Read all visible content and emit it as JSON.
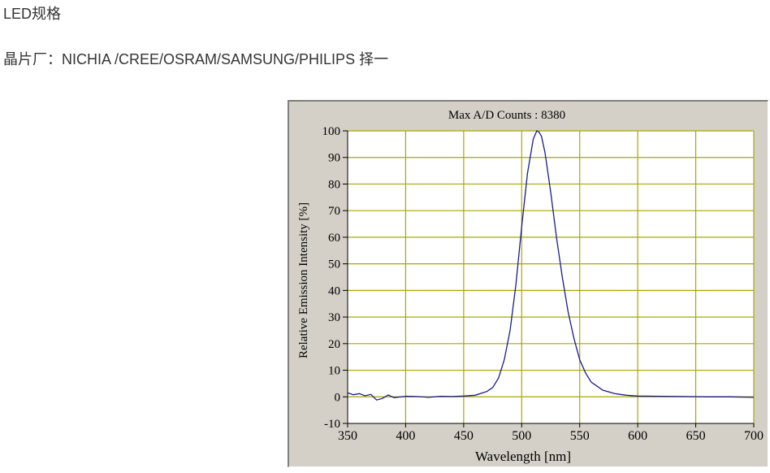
{
  "heading": "LED规格",
  "chip_line": "晶片厂：NICHIA /CREE/OSRAM/SAMSUNG/PHILIPS 择一",
  "chart_data": {
    "type": "line",
    "title": "Max A/D Counts : 8380",
    "xlabel": "Wavelength  [nm]",
    "ylabel": "Relative Emission Intensity [%]",
    "xlim": [
      350,
      700
    ],
    "ylim": [
      -10,
      100
    ],
    "xticks": [
      350,
      400,
      450,
      500,
      550,
      600,
      650,
      700
    ],
    "yticks": [
      100,
      90,
      80,
      70,
      60,
      50,
      40,
      30,
      20,
      10,
      0,
      -10
    ],
    "grid": true,
    "legend": "none",
    "colors": {
      "line": "#1a1a8c",
      "grid": "#a8a800",
      "plot_bg": "#ffffff",
      "frame_bg": "#d4d0c8"
    },
    "series": [
      {
        "x": [
          350,
          355,
          360,
          365,
          370,
          375,
          380,
          385,
          390,
          400,
          410,
          420,
          430,
          440,
          450,
          460,
          470,
          475,
          480,
          485,
          490,
          495,
          500,
          505,
          510,
          513,
          515,
          517,
          520,
          525,
          530,
          535,
          540,
          545,
          550,
          555,
          560,
          570,
          580,
          590,
          600,
          620,
          640,
          660,
          680,
          700
        ],
        "y": [
          1.5,
          0.8,
          1.2,
          0.4,
          0.9,
          -1.2,
          -0.6,
          0.7,
          -0.3,
          0.2,
          0.1,
          -0.2,
          0.2,
          0.1,
          0.3,
          0.6,
          2,
          3.5,
          7,
          14,
          25,
          42,
          64,
          84,
          97,
          100,
          99.5,
          98,
          92,
          77,
          60,
          45,
          32,
          22,
          14,
          9,
          5.5,
          2.5,
          1.2,
          0.6,
          0.3,
          0.2,
          0.1,
          0,
          0,
          -0.2
        ]
      }
    ]
  }
}
